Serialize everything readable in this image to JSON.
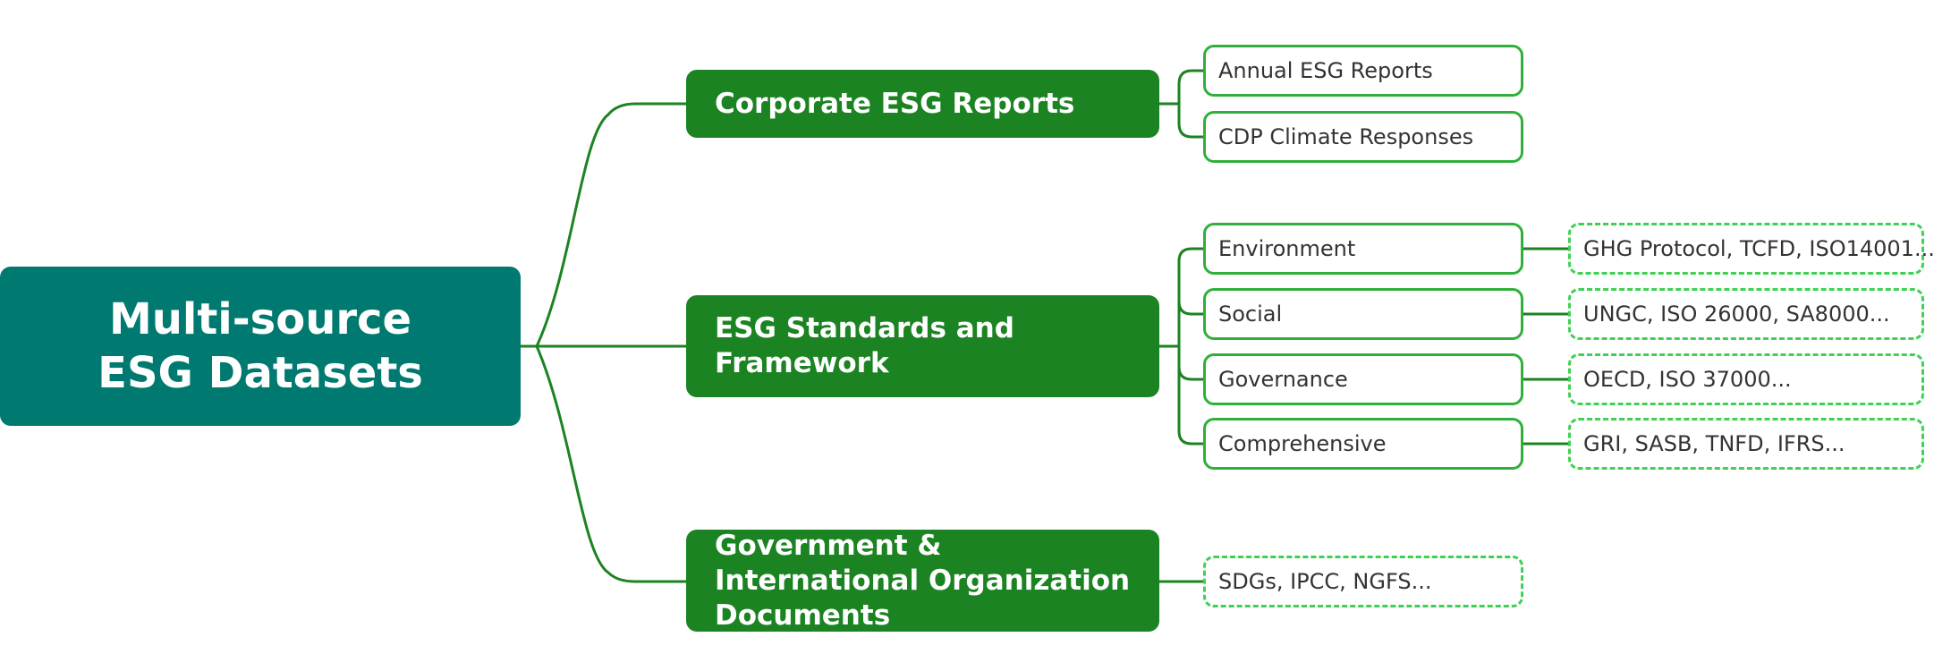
{
  "root": {
    "label": "Multi-source ESG Datasets"
  },
  "categories": [
    {
      "label": "Corporate ESG Reports",
      "items": [
        {
          "label": "Annual ESG Reports"
        },
        {
          "label": "CDP Climate Responses"
        }
      ]
    },
    {
      "label": "ESG Standards and Framework",
      "items": [
        {
          "label": "Environment",
          "detail": "GHG Protocol, TCFD, ISO14001..."
        },
        {
          "label": "Social",
          "detail": "UNGC, ISO 26000, SA8000..."
        },
        {
          "label": "Governance",
          "detail": "OECD, ISO 37000..."
        },
        {
          "label": "Comprehensive",
          "detail": "GRI, SASB, TNFD, IFRS..."
        }
      ]
    },
    {
      "label": "Government & International Organization Documents",
      "items": [
        {
          "label": "SDGs, IPCC, NGFS..."
        }
      ]
    }
  ],
  "colors": {
    "root_fill": "#007a70",
    "category_fill": "#1b8321",
    "connector": "#1b8321",
    "leaf_border": "#2fb03a",
    "dashed_border": "#3fd152"
  }
}
